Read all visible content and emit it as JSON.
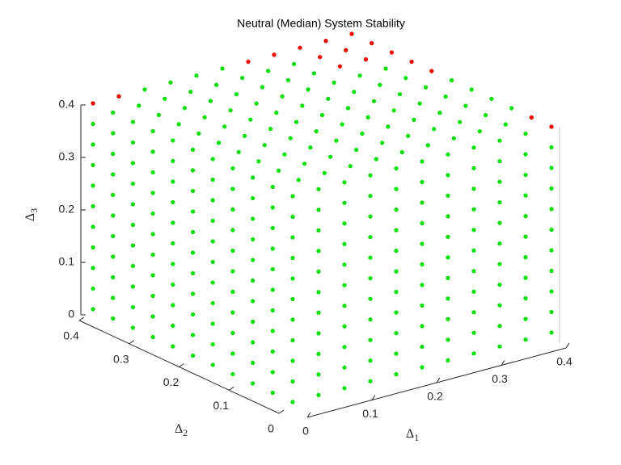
{
  "chart_data": {
    "type": "scatter3d",
    "title": "Neutral (Median) System Stability",
    "xlabel": {
      "base": "Δ",
      "sub": "1"
    },
    "ylabel": {
      "base": "Δ",
      "sub": "2"
    },
    "zlabel": {
      "base": "Δ",
      "sub": "3"
    },
    "xlim": [
      0,
      0.4
    ],
    "ylim": [
      0,
      0.4
    ],
    "zlim": [
      0,
      0.4
    ],
    "xticks": [
      0,
      0.1,
      0.2,
      0.3,
      0.4
    ],
    "yticks": [
      0,
      0.1,
      0.2,
      0.3,
      0.4
    ],
    "zticks": [
      0,
      0.1,
      0.2,
      0.3,
      0.4
    ],
    "series": [
      {
        "color": "#00e000",
        "grid": true,
        "x": [
          0,
          0.04,
          0.08,
          0.12,
          0.16,
          0.2,
          0.24,
          0.28,
          0.32,
          0.36,
          0.4
        ],
        "y": [
          0,
          0.04,
          0.08,
          0.12,
          0.16,
          0.2,
          0.24,
          0.28,
          0.32,
          0.36,
          0.4
        ],
        "z": [
          0,
          0.04,
          0.08,
          0.12,
          0.16,
          0.2,
          0.24,
          0.28,
          0.32,
          0.36,
          0.4
        ]
      },
      {
        "color": "#ff0000",
        "grid": false,
        "x": [
          0,
          0.04,
          0.24,
          0.28,
          0.32,
          0.36,
          0.4,
          0.4,
          0.4,
          0.4,
          0.4,
          0.4,
          0.4,
          0.32,
          0.32,
          0.36,
          0.36
        ],
        "y": [
          0.4,
          0.4,
          0.4,
          0.4,
          0.4,
          0.4,
          0.4,
          0,
          0.04,
          0.24,
          0.28,
          0.32,
          0.36,
          0.32,
          0.36,
          0.32,
          0.36
        ],
        "z": [
          0.4,
          0.4,
          0.4,
          0.4,
          0.4,
          0.4,
          0.4,
          0.4,
          0.4,
          0.4,
          0.4,
          0.4,
          0.4,
          0.4,
          0.4,
          0.4,
          0.4
        ]
      }
    ]
  }
}
